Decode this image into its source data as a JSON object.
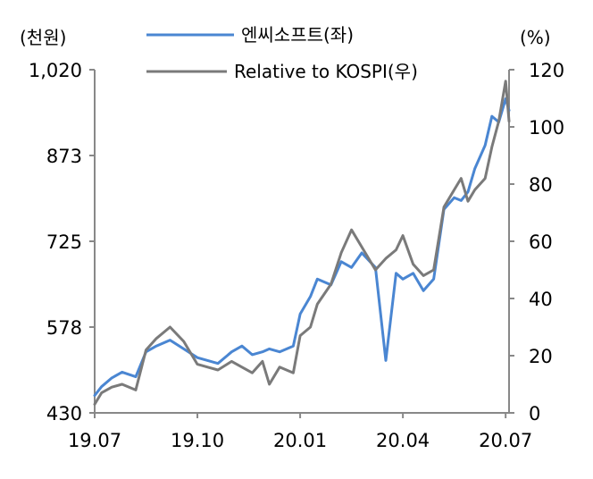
{
  "chart_data": {
    "type": "line",
    "left_axis_unit": "(천원)",
    "right_axis_unit": "(%)",
    "x_tick_labels": [
      "19.07",
      "19.10",
      "20.01",
      "20.04",
      "20.07"
    ],
    "left_tick_labels": [
      "1,020",
      "873",
      "725",
      "578",
      "430"
    ],
    "right_tick_labels": [
      "120",
      "100",
      "80",
      "60",
      "40",
      "20",
      "0"
    ],
    "left_ylim": [
      430,
      1020
    ],
    "right_ylim": [
      0,
      120
    ],
    "xlim": [
      0,
      12.1
    ],
    "colors": {
      "series1": "#4a86d2",
      "series2": "#7a7a7a"
    },
    "series": [
      {
        "name": "엔씨소프트(좌)",
        "axis": "left",
        "x": [
          0,
          0.2,
          0.5,
          0.8,
          1.2,
          1.5,
          1.8,
          2.2,
          2.6,
          3.0,
          3.3,
          3.6,
          4.0,
          4.3,
          4.6,
          4.9,
          5.1,
          5.4,
          5.8,
          6.0,
          6.3,
          6.5,
          6.9,
          7.2,
          7.5,
          7.8,
          8.2,
          8.5,
          8.8,
          9.0,
          9.3,
          9.6,
          9.9,
          10.2,
          10.5,
          10.7,
          10.9,
          11.1,
          11.4,
          11.6,
          11.8,
          12.0,
          12.1
        ],
        "y": [
          460,
          475,
          490,
          500,
          492,
          535,
          545,
          555,
          540,
          525,
          520,
          515,
          535,
          545,
          530,
          535,
          540,
          535,
          545,
          600,
          630,
          660,
          650,
          690,
          680,
          705,
          680,
          520,
          670,
          660,
          670,
          640,
          660,
          780,
          800,
          795,
          810,
          850,
          890,
          940,
          930,
          970,
          950
        ]
      },
      {
        "name": "Relative to KOSPI(우)",
        "axis": "right",
        "x": [
          0,
          0.2,
          0.5,
          0.8,
          1.2,
          1.5,
          1.8,
          2.2,
          2.6,
          3.0,
          3.3,
          3.6,
          4.0,
          4.3,
          4.6,
          4.9,
          5.1,
          5.4,
          5.8,
          6.0,
          6.3,
          6.5,
          6.9,
          7.2,
          7.5,
          7.8,
          8.2,
          8.5,
          8.8,
          9.0,
          9.3,
          9.6,
          9.9,
          10.2,
          10.5,
          10.7,
          10.9,
          11.1,
          11.4,
          11.6,
          11.8,
          12.0,
          12.1
        ],
        "y": [
          3,
          7,
          9,
          10,
          8,
          22,
          26,
          30,
          25,
          17,
          16,
          15,
          18,
          16,
          14,
          18,
          10,
          16,
          14,
          27,
          30,
          38,
          45,
          56,
          64,
          58,
          50,
          54,
          57,
          62,
          52,
          48,
          50,
          72,
          78,
          82,
          74,
          78,
          82,
          93,
          102,
          116,
          102
        ]
      }
    ]
  }
}
